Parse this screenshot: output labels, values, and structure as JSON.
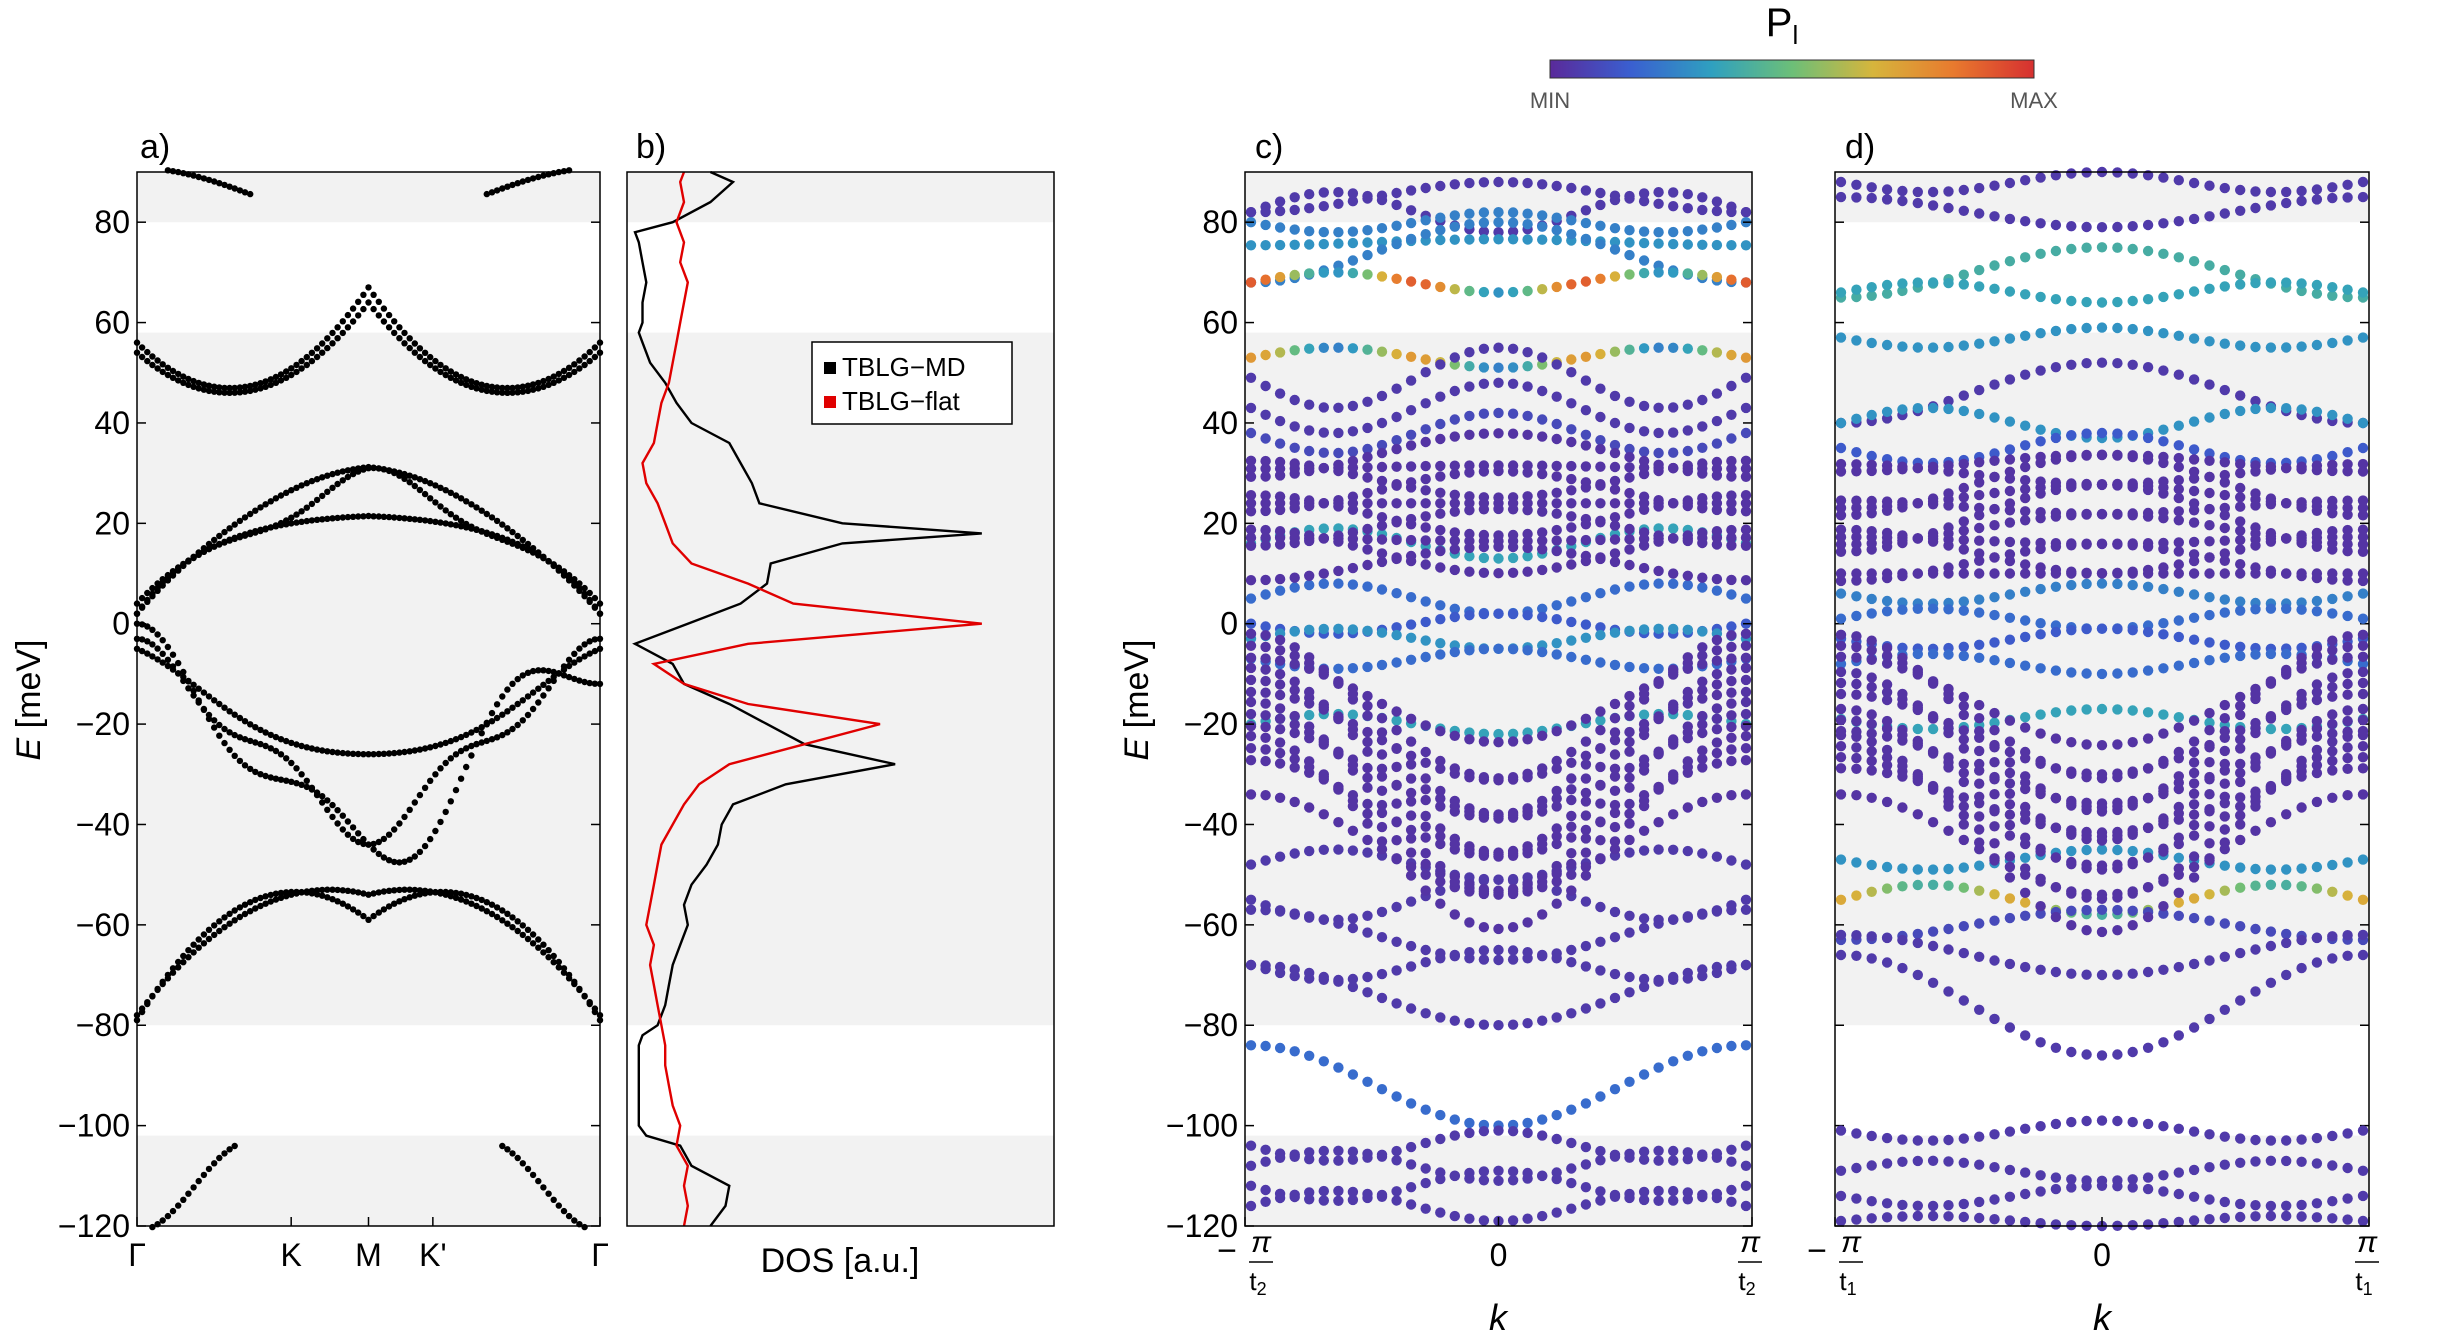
{
  "colorbar": {
    "label": "P",
    "label_sub": "l",
    "min_label": "MIN",
    "max_label": "MAX",
    "stops": [
      "#5a2a9a",
      "#3a5fd0",
      "#2fa0c0",
      "#6cbf78",
      "#d6b53c",
      "#e87a2e",
      "#d63030"
    ]
  },
  "colors": {
    "gap_band": "#f2f2f2",
    "black": "#000000",
    "red": "#e00000"
  },
  "chart_data": [
    {
      "id": "a",
      "panel_label": "a)",
      "type": "scatter",
      "ylabel": "E",
      "ylabel_unit": "[meV]",
      "ylim": [
        -120,
        90
      ],
      "yticks": [
        80,
        60,
        40,
        20,
        0,
        -20,
        -40,
        -60,
        -80,
        -100,
        -120
      ],
      "ytick_labels": [
        "80",
        "60",
        "40",
        "20",
        "0",
        "−20",
        "−40",
        "−60",
        "−80",
        "−100",
        "−120"
      ],
      "xtick_labels": [
        "Γ",
        "K",
        "M",
        "K'",
        "Γ"
      ],
      "xtick_positions": [
        0,
        0.333,
        0.5,
        0.639,
        1
      ],
      "shaded_bands": [
        [
          80,
          90
        ],
        [
          -80,
          58
        ],
        [
          -120,
          -102
        ]
      ],
      "description": "band structure TBLG-MD along Gamma-K-M-K'-Gamma"
    },
    {
      "id": "b",
      "panel_label": "b)",
      "type": "line",
      "xlabel": "DOS [a.u.]",
      "ylim": [
        -120,
        90
      ],
      "shaded_bands": [
        [
          80,
          90
        ],
        [
          -80,
          58
        ],
        [
          -120,
          -102
        ]
      ],
      "legend": [
        {
          "name": "TBLG−MD",
          "color": "#000000"
        },
        {
          "name": "TBLG−flat",
          "color": "#e00000"
        }
      ],
      "series": [
        {
          "name": "TBLG−MD",
          "color": "#000000",
          "E": [
            -120,
            -116,
            -112,
            -108,
            -104,
            -102,
            -100,
            -96,
            -92,
            -88,
            -84,
            -82,
            -80,
            -76,
            -72,
            -68,
            -64,
            -60,
            -56,
            -52,
            -48,
            -44,
            -40,
            -36,
            -32,
            -28,
            -24,
            -20,
            -16,
            -12,
            -8,
            -4,
            0,
            4,
            8,
            12,
            16,
            18,
            20,
            24,
            28,
            32,
            36,
            40,
            44,
            48,
            52,
            56,
            58,
            60,
            64,
            68,
            72,
            76,
            78,
            80,
            84,
            88,
            90
          ],
          "dos": [
            0.2,
            0.24,
            0.25,
            0.15,
            0.12,
            0.03,
            0.01,
            0.01,
            0.01,
            0.01,
            0.01,
            0.02,
            0.06,
            0.08,
            0.09,
            0.1,
            0.12,
            0.14,
            0.13,
            0.15,
            0.19,
            0.22,
            0.23,
            0.26,
            0.4,
            0.69,
            0.45,
            0.35,
            0.25,
            0.13,
            0.1,
            0.0,
            0.14,
            0.28,
            0.35,
            0.36,
            0.55,
            0.92,
            0.55,
            0.33,
            0.31,
            0.28,
            0.25,
            0.15,
            0.11,
            0.08,
            0.04,
            0.02,
            0.01,
            0.02,
            0.02,
            0.03,
            0.02,
            0.01,
            0.0,
            0.1,
            0.2,
            0.26,
            0.2
          ]
        },
        {
          "name": "TBLG−flat",
          "color": "#e00000",
          "E": [
            -120,
            -116,
            -112,
            -108,
            -104,
            -100,
            -96,
            -92,
            -88,
            -84,
            -80,
            -76,
            -72,
            -68,
            -64,
            -60,
            -56,
            -52,
            -48,
            -44,
            -40,
            -36,
            -32,
            -28,
            -24,
            -20,
            -16,
            -12,
            -8,
            -4,
            0,
            4,
            8,
            12,
            16,
            20,
            24,
            28,
            32,
            36,
            40,
            44,
            48,
            52,
            56,
            60,
            64,
            68,
            72,
            76,
            80,
            84,
            88,
            90
          ],
          "dos": [
            0.13,
            0.14,
            0.13,
            0.14,
            0.11,
            0.12,
            0.1,
            0.09,
            0.08,
            0.08,
            0.07,
            0.06,
            0.05,
            0.04,
            0.05,
            0.03,
            0.04,
            0.05,
            0.06,
            0.07,
            0.1,
            0.13,
            0.17,
            0.25,
            0.45,
            0.65,
            0.3,
            0.13,
            0.05,
            0.3,
            0.92,
            0.42,
            0.3,
            0.15,
            0.1,
            0.08,
            0.06,
            0.03,
            0.02,
            0.05,
            0.06,
            0.07,
            0.09,
            0.1,
            0.11,
            0.12,
            0.13,
            0.14,
            0.12,
            0.13,
            0.11,
            0.13,
            0.12,
            0.13
          ]
        }
      ]
    },
    {
      "id": "c",
      "panel_label": "c)",
      "type": "scatter",
      "xlabel": "k",
      "ylabel": "E",
      "ylabel_unit": "[meV]",
      "ylim": [
        -120,
        90
      ],
      "yticks": [
        80,
        60,
        40,
        20,
        0,
        -20,
        -40,
        -60,
        -80,
        -100,
        -120
      ],
      "ytick_labels": [
        "80",
        "60",
        "40",
        "20",
        "0",
        "−20",
        "−40",
        "−60",
        "−80",
        "−100",
        "−120"
      ],
      "xtick_labels": {
        "left_sign": "−",
        "num": "π",
        "den": "t",
        "den_sub": "2",
        "center": "0"
      },
      "shaded_bands": [
        [
          80,
          90
        ],
        [
          -80,
          58
        ],
        [
          -120,
          -102
        ]
      ]
    },
    {
      "id": "d",
      "panel_label": "d)",
      "type": "scatter",
      "xlabel": "k",
      "ylim": [
        -120,
        90
      ],
      "yticks": [
        80,
        60,
        40,
        20,
        0,
        -20,
        -40,
        -60,
        -80,
        -100,
        -120
      ],
      "ytick_labels": [
        "80",
        "60",
        "40",
        "20",
        "0",
        "−20",
        "−40",
        "−60",
        "−80",
        "−100",
        "−120"
      ],
      "xtick_labels": {
        "left_sign": "−",
        "num": "π",
        "den": "t",
        "den_sub": "1",
        "center": "0"
      },
      "shaded_bands": [
        [
          80,
          90
        ],
        [
          -80,
          58
        ],
        [
          -120,
          -102
        ]
      ]
    }
  ]
}
